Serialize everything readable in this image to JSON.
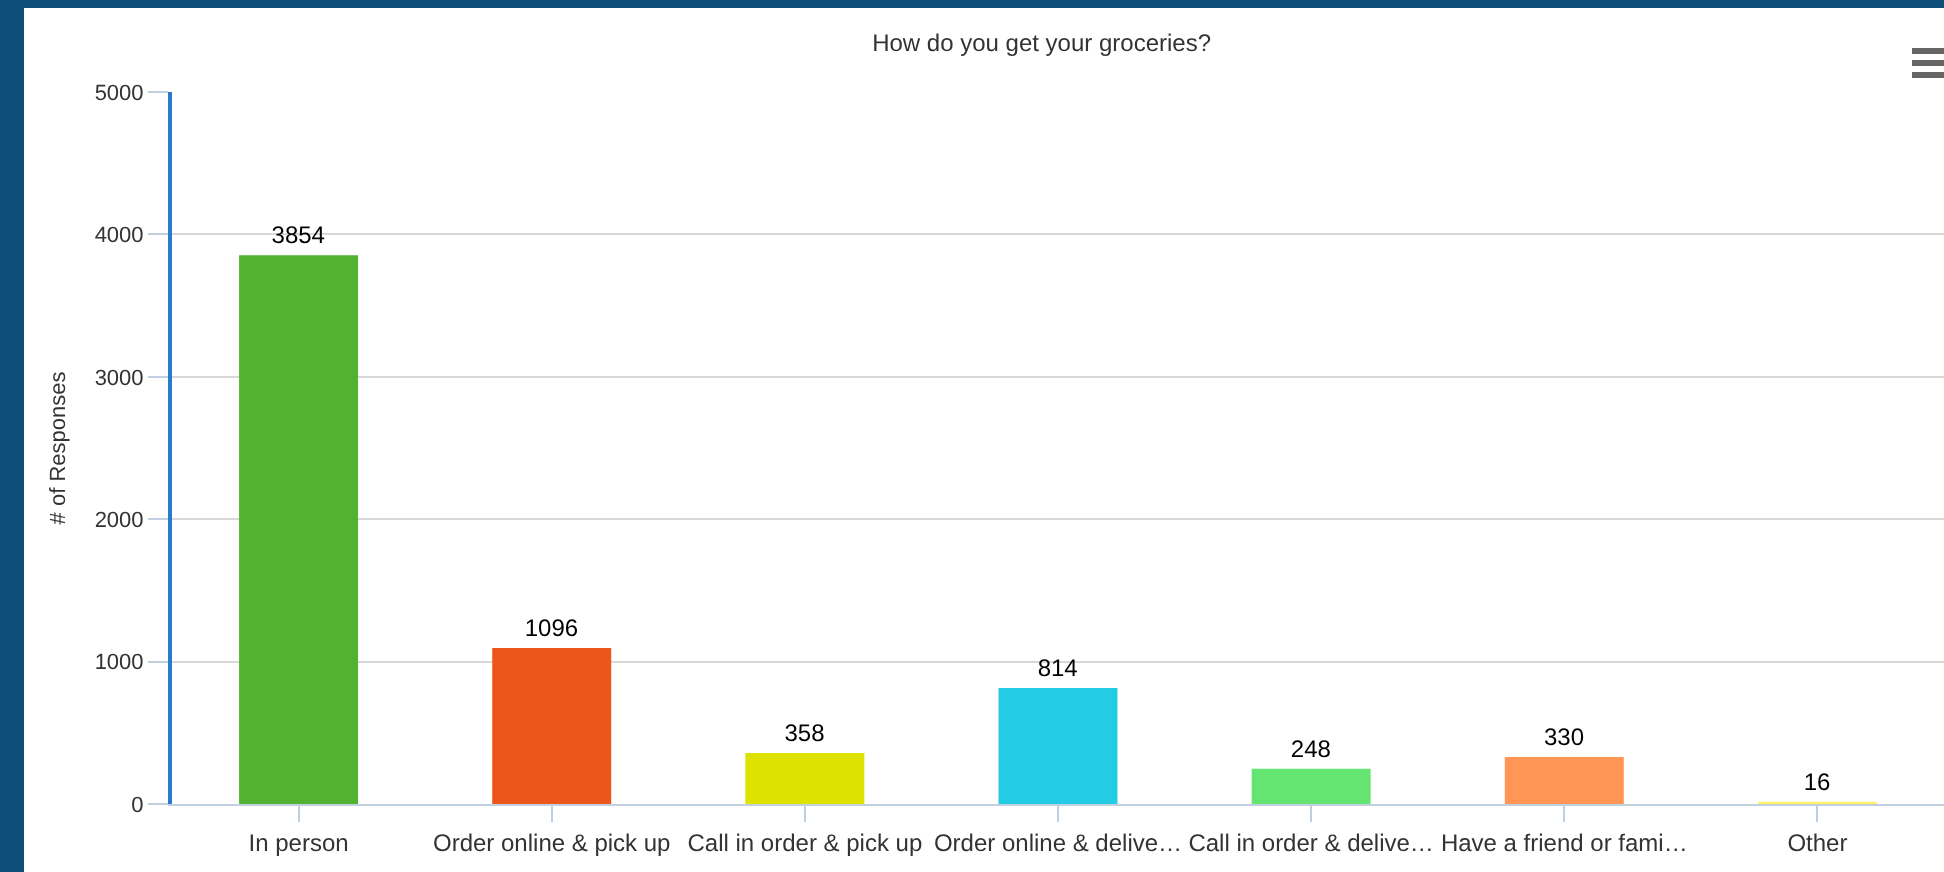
{
  "chart_data": {
    "type": "bar",
    "title": "How do you get your groceries?",
    "ylabel": "# of Responses",
    "categories": [
      "In person",
      "Order online & pick up",
      "Call in order & pick up",
      "Order online & delive…",
      "Call in order & delive…",
      "Have a friend or fami…",
      "Other"
    ],
    "values": [
      3854,
      1096,
      358,
      814,
      248,
      330,
      16
    ],
    "colors": [
      "#52b332",
      "#ec561b",
      "#dde200",
      "#24cbe5",
      "#64e572",
      "#ff9655",
      "#fff263"
    ],
    "ylim": [
      0,
      5000
    ],
    "yticks": [
      0,
      1000,
      2000,
      3000,
      4000,
      5000
    ],
    "grid": "y",
    "data_labels": true
  }
}
